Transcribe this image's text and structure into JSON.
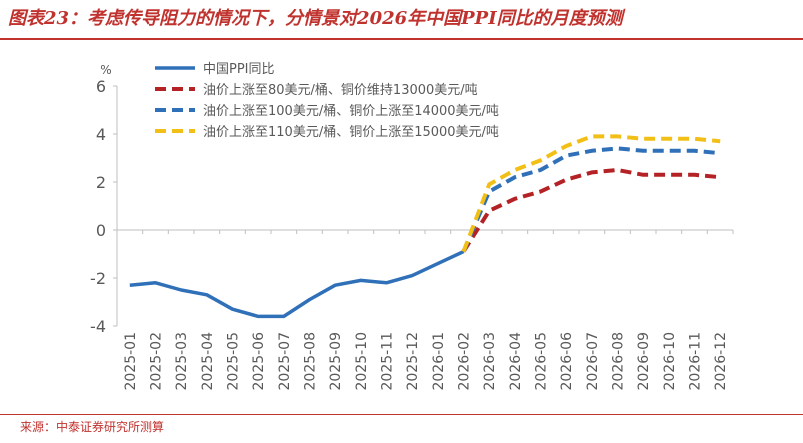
{
  "page": {
    "title": "图表23：考虑传导阻力的情况下，分情景对2026年中国PPI同比的月度预测",
    "source": "来源：中泰证券研究所测算"
  },
  "colors": {
    "accent": "#c0322e",
    "actual": "#2f70b8",
    "scenario_low": "#b42226",
    "scenario_mid": "#2f70b8",
    "scenario_high": "#f2bf16",
    "axis": "#bfbfbf",
    "text": "#595959"
  },
  "chart_data": {
    "type": "line",
    "title": "",
    "xlabel": "",
    "ylabel": "%",
    "ylim": [
      -4,
      6
    ],
    "yticks": [
      -4,
      -2,
      0,
      2,
      4,
      6
    ],
    "grid": false,
    "legend_position": "top-left",
    "categories": [
      "2025-01",
      "2025-02",
      "2025-03",
      "2025-04",
      "2025-05",
      "2025-06",
      "2025-07",
      "2025-08",
      "2025-09",
      "2025-10",
      "2025-11",
      "2025-12",
      "2026-01",
      "2026-02",
      "2026-03",
      "2026-04",
      "2026-05",
      "2026-06",
      "2026-07",
      "2026-08",
      "2026-09",
      "2026-10",
      "2026-11",
      "2026-12"
    ],
    "series": [
      {
        "name": "中国PPI同比",
        "style": "solid",
        "color": "#2f70b8",
        "values": [
          -2.3,
          -2.2,
          -2.5,
          -2.7,
          -3.3,
          -3.6,
          -3.6,
          -2.9,
          -2.3,
          -2.1,
          -2.2,
          -1.9,
          -1.4,
          -0.9,
          null,
          null,
          null,
          null,
          null,
          null,
          null,
          null,
          null,
          null
        ]
      },
      {
        "name": "油价上涨至80美元/桶、铜价维持13000美元/吨",
        "style": "dashed",
        "color": "#b42226",
        "values": [
          null,
          null,
          null,
          null,
          null,
          null,
          null,
          null,
          null,
          null,
          null,
          null,
          null,
          -0.9,
          0.8,
          1.3,
          1.6,
          2.1,
          2.4,
          2.5,
          2.3,
          2.3,
          2.3,
          2.2
        ]
      },
      {
        "name": "油价上涨至100美元/桶、铜价上涨至14000美元/吨",
        "style": "dashed",
        "color": "#2f70b8",
        "values": [
          null,
          null,
          null,
          null,
          null,
          null,
          null,
          null,
          null,
          null,
          null,
          null,
          null,
          -0.9,
          1.6,
          2.2,
          2.5,
          3.1,
          3.3,
          3.4,
          3.3,
          3.3,
          3.3,
          3.2
        ]
      },
      {
        "name": "油价上涨至110美元/桶、铜价上涨至15000美元/吨",
        "style": "dashed",
        "color": "#f2bf16",
        "values": [
          null,
          null,
          null,
          null,
          null,
          null,
          null,
          null,
          null,
          null,
          null,
          null,
          null,
          -0.9,
          1.9,
          2.5,
          2.9,
          3.5,
          3.9,
          3.9,
          3.8,
          3.8,
          3.8,
          3.7
        ]
      }
    ]
  }
}
